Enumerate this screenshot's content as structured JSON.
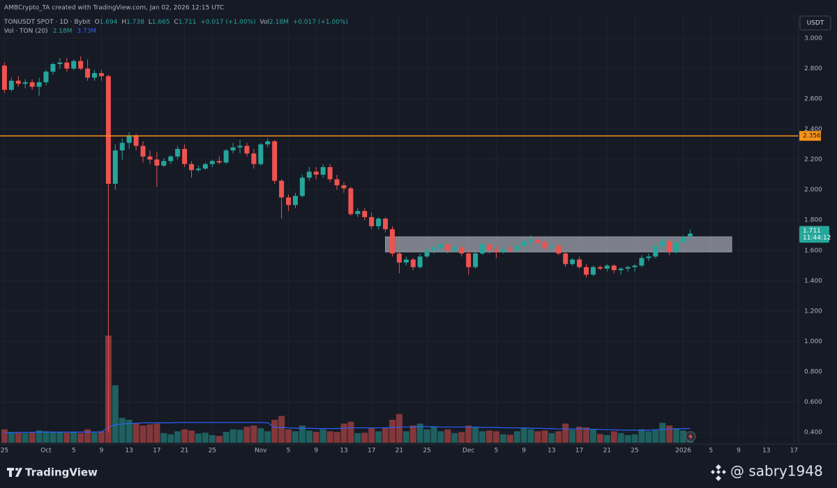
{
  "header": {
    "credit": "AMBCrypto_TA created with TradingView.com, Jan 02, 2026 12:15 UTC"
  },
  "legend": {
    "symbol": "TONUSDT SPOT · 1D · Bybit",
    "ohlc_labels": [
      "O",
      "H",
      "L",
      "C"
    ],
    "change": "+0.017 (+1.00%)",
    "vol_label": "Vol",
    "vol": "2.18M",
    "vol_change": "+0.017 (+1.00%)",
    "vol_study": "Vol · TON (20)",
    "vol_ma": "3.73M"
  },
  "currency": "USDT",
  "countdown": "11:44:12",
  "footer": {
    "brand": "TradingView",
    "watermark": "@ sabry1948"
  },
  "chart_data": {
    "type": "candlestick",
    "up_color": "#26a69a",
    "down_color": "#ef5350",
    "level_color": "#f7931a",
    "ma_color": "#2962ff",
    "grid": true,
    "categories": [
      "09-25",
      "09-26",
      "09-27",
      "09-28",
      "09-29",
      "09-30",
      "10-01",
      "10-02",
      "10-03",
      "10-04",
      "10-05",
      "10-06",
      "10-07",
      "10-08",
      "10-09",
      "10-10",
      "10-11",
      "10-12",
      "10-13",
      "10-14",
      "10-15",
      "10-16",
      "10-17",
      "10-18",
      "10-19",
      "10-20",
      "10-21",
      "10-22",
      "10-23",
      "10-24",
      "10-25",
      "10-26",
      "10-27",
      "10-28",
      "10-29",
      "10-30",
      "10-31",
      "11-01",
      "11-02",
      "11-03",
      "11-04",
      "11-05",
      "11-06",
      "11-07",
      "11-08",
      "11-09",
      "11-10",
      "11-11",
      "11-12",
      "11-13",
      "11-14",
      "11-15",
      "11-16",
      "11-17",
      "11-18",
      "11-19",
      "11-20",
      "11-21",
      "11-22",
      "11-23",
      "11-24",
      "11-25",
      "11-26",
      "11-27",
      "11-28",
      "11-29",
      "11-30",
      "12-01",
      "12-02",
      "12-03",
      "12-04",
      "12-05",
      "12-06",
      "12-07",
      "12-08",
      "12-09",
      "12-10",
      "12-11",
      "12-12",
      "12-13",
      "12-14",
      "12-15",
      "12-16",
      "12-17",
      "12-18",
      "12-19",
      "12-20",
      "12-21",
      "12-22",
      "12-23",
      "12-24",
      "12-25",
      "12-26",
      "12-27",
      "12-28",
      "12-29",
      "12-30",
      "12-31",
      "01-01",
      "01-02"
    ],
    "open": [
      2.82,
      2.66,
      2.72,
      2.7,
      2.71,
      2.68,
      2.71,
      2.78,
      2.83,
      2.84,
      2.8,
      2.85,
      2.8,
      2.74,
      2.77,
      2.75,
      2.04,
      2.26,
      2.31,
      2.36,
      2.29,
      2.22,
      2.2,
      2.16,
      2.19,
      2.22,
      2.27,
      2.17,
      2.13,
      2.14,
      2.17,
      2.19,
      2.18,
      2.26,
      2.28,
      2.29,
      2.24,
      2.17,
      2.3,
      2.32,
      2.06,
      1.95,
      1.9,
      1.96,
      2.08,
      2.12,
      2.1,
      2.15,
      2.07,
      2.03,
      2.01,
      1.84,
      1.86,
      1.82,
      1.76,
      1.81,
      1.74,
      1.58,
      1.52,
      1.54,
      1.49,
      1.56,
      1.6,
      1.62,
      1.64,
      1.6,
      1.62,
      1.58,
      1.49,
      1.58,
      1.64,
      1.6,
      1.59,
      1.61,
      1.6,
      1.63,
      1.66,
      1.67,
      1.65,
      1.62,
      1.63,
      1.58,
      1.51,
      1.54,
      1.49,
      1.44,
      1.49,
      1.48,
      1.5,
      1.47,
      1.48,
      1.49,
      1.5,
      1.55,
      1.56,
      1.63,
      1.66,
      1.59,
      1.65,
      1.694
    ],
    "high": [
      2.84,
      2.74,
      2.75,
      2.73,
      2.73,
      2.74,
      2.79,
      2.84,
      2.87,
      2.87,
      2.86,
      2.88,
      2.86,
      2.79,
      2.79,
      2.76,
      2.3,
      2.34,
      2.38,
      2.37,
      2.32,
      2.26,
      2.25,
      2.21,
      2.23,
      2.29,
      2.3,
      2.19,
      2.16,
      2.18,
      2.2,
      2.22,
      2.27,
      2.31,
      2.33,
      2.31,
      2.27,
      2.31,
      2.34,
      2.33,
      2.07,
      1.97,
      1.98,
      2.1,
      2.15,
      2.15,
      2.17,
      2.17,
      2.1,
      2.05,
      2.02,
      1.88,
      1.88,
      1.85,
      1.82,
      1.82,
      1.76,
      1.6,
      1.56,
      1.55,
      1.58,
      1.62,
      1.65,
      1.65,
      1.65,
      1.63,
      1.63,
      1.6,
      1.6,
      1.65,
      1.65,
      1.63,
      1.62,
      1.63,
      1.65,
      1.68,
      1.7,
      1.69,
      1.67,
      1.64,
      1.64,
      1.59,
      1.55,
      1.56,
      1.51,
      1.5,
      1.5,
      1.51,
      1.51,
      1.49,
      1.5,
      1.51,
      1.57,
      1.58,
      1.64,
      1.68,
      1.67,
      1.66,
      1.7,
      1.738
    ],
    "low": [
      2.64,
      2.65,
      2.68,
      2.67,
      2.66,
      2.62,
      2.69,
      2.76,
      2.8,
      2.78,
      2.79,
      2.79,
      2.72,
      2.72,
      2.72,
      0.4,
      2.0,
      2.2,
      2.27,
      2.26,
      2.18,
      2.17,
      2.02,
      2.15,
      2.17,
      2.2,
      2.15,
      2.08,
      2.12,
      2.13,
      2.15,
      2.17,
      2.17,
      2.24,
      2.24,
      2.22,
      2.14,
      2.16,
      2.28,
      2.04,
      1.81,
      1.86,
      1.88,
      1.95,
      2.06,
      2.07,
      2.08,
      2.05,
      2.0,
      1.98,
      1.83,
      1.82,
      1.8,
      1.74,
      1.74,
      1.72,
      1.56,
      1.45,
      1.5,
      1.47,
      1.48,
      1.55,
      1.58,
      1.59,
      1.58,
      1.59,
      1.56,
      1.44,
      1.48,
      1.57,
      1.58,
      1.55,
      1.58,
      1.59,
      1.59,
      1.62,
      1.63,
      1.64,
      1.6,
      1.59,
      1.57,
      1.49,
      1.5,
      1.48,
      1.42,
      1.43,
      1.47,
      1.46,
      1.45,
      1.44,
      1.46,
      1.46,
      1.49,
      1.53,
      1.55,
      1.61,
      1.57,
      1.58,
      1.64,
      1.665
    ],
    "close": [
      2.66,
      2.72,
      2.7,
      2.71,
      2.68,
      2.71,
      2.78,
      2.83,
      2.84,
      2.8,
      2.85,
      2.8,
      2.74,
      2.77,
      2.75,
      2.04,
      2.26,
      2.31,
      2.36,
      2.29,
      2.22,
      2.2,
      2.16,
      2.19,
      2.22,
      2.27,
      2.17,
      2.13,
      2.14,
      2.17,
      2.19,
      2.18,
      2.26,
      2.28,
      2.29,
      2.24,
      2.17,
      2.3,
      2.32,
      2.06,
      1.95,
      1.9,
      1.96,
      2.08,
      2.12,
      2.1,
      2.15,
      2.07,
      2.03,
      2.01,
      1.84,
      1.86,
      1.82,
      1.76,
      1.81,
      1.74,
      1.58,
      1.52,
      1.54,
      1.49,
      1.56,
      1.6,
      1.62,
      1.64,
      1.6,
      1.62,
      1.58,
      1.49,
      1.58,
      1.64,
      1.6,
      1.59,
      1.61,
      1.6,
      1.63,
      1.66,
      1.67,
      1.65,
      1.62,
      1.63,
      1.58,
      1.51,
      1.54,
      1.49,
      1.44,
      1.49,
      1.48,
      1.5,
      1.47,
      1.48,
      1.49,
      1.5,
      1.55,
      1.56,
      1.63,
      1.66,
      1.59,
      1.65,
      1.69,
      1.711
    ],
    "volume": [
      3.5,
      2.8,
      2.6,
      2.5,
      2.8,
      3.2,
      3,
      2.7,
      2.9,
      2.6,
      2.8,
      2.5,
      3.5,
      2.6,
      3,
      28,
      15,
      6.5,
      6,
      5,
      4.5,
      4.8,
      5,
      2.5,
      2.2,
      3,
      3.5,
      3.2,
      2.4,
      2.6,
      2,
      1.8,
      2.8,
      3.5,
      3.4,
      4.2,
      4.5,
      3.8,
      3,
      6,
      7,
      3.5,
      3,
      4.5,
      3.2,
      2.8,
      3.5,
      3,
      2.8,
      5,
      5.5,
      2.5,
      2.6,
      4,
      3,
      4,
      6,
      7.5,
      3,
      4.5,
      5,
      3.5,
      4.2,
      3,
      3.5,
      2.5,
      2.8,
      4.5,
      4,
      3,
      3.2,
      3,
      2.2,
      2.1,
      3,
      3.8,
      3.5,
      3,
      3.2,
      2.5,
      3,
      5,
      3.4,
      4.2,
      4,
      3.6,
      2.3,
      2,
      3,
      2.5,
      2,
      2.2,
      3.5,
      3,
      3.3,
      5.2,
      4.5,
      3.8,
      3.2,
      2.18
    ],
    "volume_ma": [
      2.6,
      2.6,
      2.7,
      2.7,
      2.7,
      2.8,
      2.8,
      2.8,
      2.8,
      2.8,
      2.8,
      2.8,
      2.8,
      2.8,
      2.8,
      4.1,
      4.7,
      4.9,
      5.0,
      5.1,
      5.2,
      5.2,
      5.2,
      5.2,
      5.2,
      5.3,
      5.3,
      5.3,
      5.3,
      5.3,
      5.3,
      5.3,
      5.3,
      5.3,
      5.3,
      5.3,
      5.3,
      5.3,
      5.2,
      4.0,
      4.0,
      3.9,
      3.8,
      3.8,
      3.8,
      3.7,
      3.7,
      3.7,
      3.7,
      3.8,
      3.9,
      3.9,
      3.9,
      3.9,
      3.9,
      3.9,
      4.0,
      4.1,
      4.1,
      4.1,
      4.2,
      4.2,
      4.2,
      4.1,
      4.1,
      4.1,
      4.1,
      4.1,
      4.1,
      4.0,
      4.0,
      4.0,
      3.9,
      3.9,
      3.9,
      3.9,
      3.8,
      3.8,
      3.7,
      3.7,
      3.6,
      3.6,
      3.6,
      3.6,
      3.6,
      3.5,
      3.5,
      3.4,
      3.4,
      3.3,
      3.3,
      3.3,
      3.3,
      3.3,
      3.4,
      3.5,
      3.6,
      3.6,
      3.7,
      3.73
    ],
    "level": 2.356,
    "zone": {
      "low": 1.59,
      "high": 1.69,
      "from": "11-19",
      "to": "01-08"
    },
    "ylim": [
      0.4,
      3.0
    ],
    "yticks": [
      {
        "value": 0.4,
        "label": "0.400"
      },
      {
        "value": 0.6,
        "label": "0.600"
      },
      {
        "value": 0.8,
        "label": "0.800"
      },
      {
        "value": 1.0,
        "label": "1.000"
      },
      {
        "value": 1.2,
        "label": "1.200"
      },
      {
        "value": 1.4,
        "label": "1.400"
      },
      {
        "value": 1.6,
        "label": "1.600"
      },
      {
        "value": 1.8,
        "label": "1.800"
      },
      {
        "value": 2.0,
        "label": "2.000"
      },
      {
        "value": 2.2,
        "label": "2.200"
      },
      {
        "value": 2.4,
        "label": "2.400"
      },
      {
        "value": 2.6,
        "label": "2.600"
      },
      {
        "value": 2.8,
        "label": "2.800"
      },
      {
        "value": 3.0,
        "label": "3.000"
      }
    ],
    "xticks": [
      {
        "value": "09-25",
        "label": "25"
      },
      {
        "value": "10-01",
        "label": "Oct"
      },
      {
        "value": "10-05",
        "label": "5"
      },
      {
        "value": "10-09",
        "label": "9"
      },
      {
        "value": "10-13",
        "label": "13"
      },
      {
        "value": "10-17",
        "label": "17"
      },
      {
        "value": "10-21",
        "label": "21"
      },
      {
        "value": "10-25",
        "label": "25"
      },
      {
        "value": "11-01",
        "label": "Nov"
      },
      {
        "value": "11-05",
        "label": "5"
      },
      {
        "value": "11-09",
        "label": "9"
      },
      {
        "value": "11-13",
        "label": "13"
      },
      {
        "value": "11-17",
        "label": "17"
      },
      {
        "value": "11-21",
        "label": "21"
      },
      {
        "value": "11-25",
        "label": "25"
      },
      {
        "value": "12-01",
        "label": "Dec"
      },
      {
        "value": "12-05",
        "label": "5"
      },
      {
        "value": "12-09",
        "label": "9"
      },
      {
        "value": "12-13",
        "label": "13"
      },
      {
        "value": "12-17",
        "label": "17"
      },
      {
        "value": "12-21",
        "label": "21"
      },
      {
        "value": "12-25",
        "label": "25"
      },
      {
        "value": "01-01",
        "label": "2026"
      },
      {
        "value": "01-05",
        "label": "5"
      },
      {
        "value": "01-09",
        "label": "9"
      },
      {
        "value": "01-13",
        "label": "13"
      },
      {
        "value": "01-17",
        "label": "17"
      }
    ]
  }
}
